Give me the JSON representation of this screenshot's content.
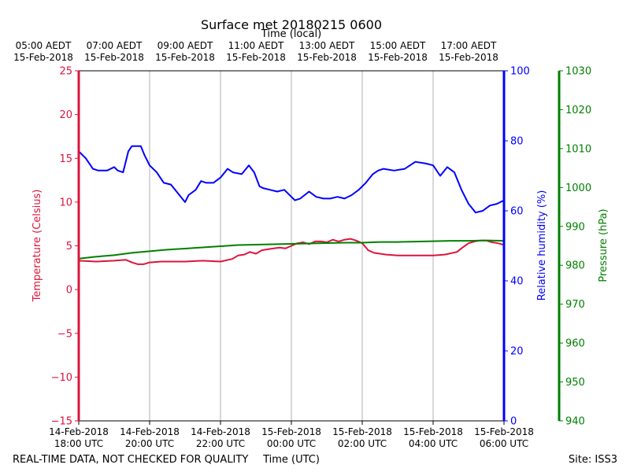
{
  "chart_data": {
    "type": "line",
    "title": "Surface met 20180215 0600",
    "top_axis_label": "Time (local)",
    "xlabel": "Time (UTC)",
    "footer_left": "REAL-TIME DATA, NOT CHECKED FOR QUALITY",
    "footer_right": "Site: ISS3",
    "x_range_hours": [
      0,
      12
    ],
    "bottom_ticks": [
      {
        "hour": 0,
        "line1": "14-Feb-2018",
        "line2": "18:00 UTC"
      },
      {
        "hour": 2,
        "line1": "14-Feb-2018",
        "line2": "20:00 UTC"
      },
      {
        "hour": 4,
        "line1": "14-Feb-2018",
        "line2": "22:00 UTC"
      },
      {
        "hour": 6,
        "line1": "15-Feb-2018",
        "line2": "00:00 UTC"
      },
      {
        "hour": 8,
        "line1": "15-Feb-2018",
        "line2": "02:00 UTC"
      },
      {
        "hour": 10,
        "line1": "15-Feb-2018",
        "line2": "04:00 UTC"
      },
      {
        "hour": 12,
        "line1": "15-Feb-2018",
        "line2": "06:00 UTC"
      }
    ],
    "top_ticks": [
      {
        "hour": -1,
        "line1": "05:00 AEDT",
        "line2": "15-Feb-2018"
      },
      {
        "hour": 1,
        "line1": "07:00 AEDT",
        "line2": "15-Feb-2018"
      },
      {
        "hour": 3,
        "line1": "09:00 AEDT",
        "line2": "15-Feb-2018"
      },
      {
        "hour": 5,
        "line1": "11:00 AEDT",
        "line2": "15-Feb-2018"
      },
      {
        "hour": 7,
        "line1": "13:00 AEDT",
        "line2": "15-Feb-2018"
      },
      {
        "hour": 9,
        "line1": "15:00 AEDT",
        "line2": "15-Feb-2018"
      },
      {
        "hour": 11,
        "line1": "17:00 AEDT",
        "line2": "15-Feb-2018"
      }
    ],
    "axes": {
      "temperature": {
        "label": "Temperature (Celsius)",
        "range": [
          -15,
          25
        ],
        "ticks": [
          25,
          20,
          15,
          10,
          5,
          0,
          -5,
          -10,
          -15
        ],
        "tick_labels": [
          "25",
          "20",
          "15",
          "10",
          "5",
          "0",
          "−5",
          "−10",
          "−15"
        ],
        "color": "#dc143c"
      },
      "humidity": {
        "label": "Relative humidity (%)",
        "range": [
          0,
          100
        ],
        "ticks": [
          100,
          80,
          60,
          40,
          20,
          0
        ],
        "tick_labels": [
          "100",
          "80",
          "60",
          "40",
          "20",
          "0"
        ],
        "color": "#0000ff"
      },
      "pressure": {
        "label": "Pressure (hPa)",
        "range": [
          940,
          1030
        ],
        "ticks": [
          1030,
          1020,
          1010,
          1000,
          990,
          980,
          970,
          960,
          950,
          940
        ],
        "tick_labels": [
          "1030",
          "1020",
          "1010",
          "1000",
          "990",
          "980",
          "970",
          "960",
          "950",
          "940"
        ],
        "color": "#008000"
      }
    },
    "series": [
      {
        "name": "Temperature",
        "axis": "temperature",
        "color": "#dc143c",
        "x": [
          0,
          0.5,
          1,
          1.33,
          1.5,
          1.67,
          1.83,
          2,
          2.33,
          3,
          3.5,
          4,
          4.33,
          4.5,
          4.67,
          4.83,
          5,
          5.17,
          5.33,
          5.5,
          5.67,
          5.83,
          6,
          6.17,
          6.33,
          6.5,
          6.67,
          6.83,
          7,
          7.17,
          7.33,
          7.5,
          7.67,
          7.83,
          8,
          8.17,
          8.33,
          8.67,
          9,
          9.5,
          10,
          10.33,
          10.67,
          10.83,
          11,
          11.17,
          11.33,
          11.5,
          11.67,
          11.83,
          12
        ],
        "values": [
          3.3,
          3.2,
          3.3,
          3.4,
          3.1,
          2.9,
          2.9,
          3.1,
          3.2,
          3.2,
          3.3,
          3.2,
          3.5,
          3.9,
          4.0,
          4.3,
          4.1,
          4.5,
          4.6,
          4.7,
          4.8,
          4.7,
          5.0,
          5.3,
          5.4,
          5.2,
          5.5,
          5.5,
          5.4,
          5.7,
          5.5,
          5.7,
          5.8,
          5.6,
          5.3,
          4.5,
          4.2,
          4.0,
          3.9,
          3.9,
          3.9,
          4.0,
          4.3,
          4.8,
          5.3,
          5.5,
          5.6,
          5.6,
          5.4,
          5.3,
          5.1
        ]
      },
      {
        "name": "Relative humidity",
        "axis": "humidity",
        "color": "#0000ff",
        "x": [
          0,
          0.2,
          0.4,
          0.55,
          0.8,
          1,
          1.1,
          1.25,
          1.4,
          1.5,
          1.6,
          1.75,
          1.85,
          2,
          2.2,
          2.4,
          2.6,
          2.8,
          3,
          3.1,
          3.3,
          3.45,
          3.6,
          3.8,
          4,
          4.2,
          4.35,
          4.6,
          4.8,
          4.95,
          5.1,
          5.2,
          5.4,
          5.6,
          5.8,
          6,
          6.1,
          6.25,
          6.5,
          6.7,
          6.9,
          7.1,
          7.3,
          7.5,
          7.7,
          7.9,
          8.1,
          8.3,
          8.45,
          8.6,
          8.9,
          9.2,
          9.5,
          9.8,
          10,
          10.2,
          10.4,
          10.6,
          10.8,
          11,
          11.2,
          11.4,
          11.6,
          11.8,
          12
        ],
        "values": [
          77,
          75,
          72,
          71.5,
          71.5,
          72.5,
          71.5,
          71,
          77,
          78.5,
          78.5,
          78.5,
          76,
          73,
          71,
          68,
          67.5,
          65,
          62.5,
          64.5,
          66,
          68.5,
          68,
          68,
          69.5,
          72,
          71,
          70.5,
          73,
          71,
          67,
          66.5,
          66,
          65.5,
          66,
          64,
          63,
          63.5,
          65.5,
          64,
          63.5,
          63.5,
          64,
          63.5,
          64.5,
          66,
          68,
          70.5,
          71.5,
          72,
          71.5,
          72,
          74,
          73.5,
          73,
          70,
          72.5,
          71,
          66,
          62,
          59.5,
          60,
          61.5,
          62,
          63
        ]
      },
      {
        "name": "Pressure",
        "axis": "pressure",
        "color": "#008000",
        "x": [
          0,
          0.5,
          1,
          1.5,
          2,
          2.5,
          3,
          3.5,
          4,
          4.5,
          5,
          5.5,
          6,
          6.5,
          7,
          7.5,
          8,
          8.5,
          9,
          9.5,
          10,
          10.5,
          11,
          11.5,
          12
        ],
        "values": [
          981.7,
          982.2,
          982.6,
          983.2,
          983.6,
          984.0,
          984.3,
          984.6,
          984.9,
          985.2,
          985.3,
          985.4,
          985.5,
          985.6,
          985.7,
          985.8,
          985.8,
          986.0,
          986.0,
          986.1,
          986.2,
          986.3,
          986.3,
          986.4,
          986.3
        ]
      }
    ]
  }
}
